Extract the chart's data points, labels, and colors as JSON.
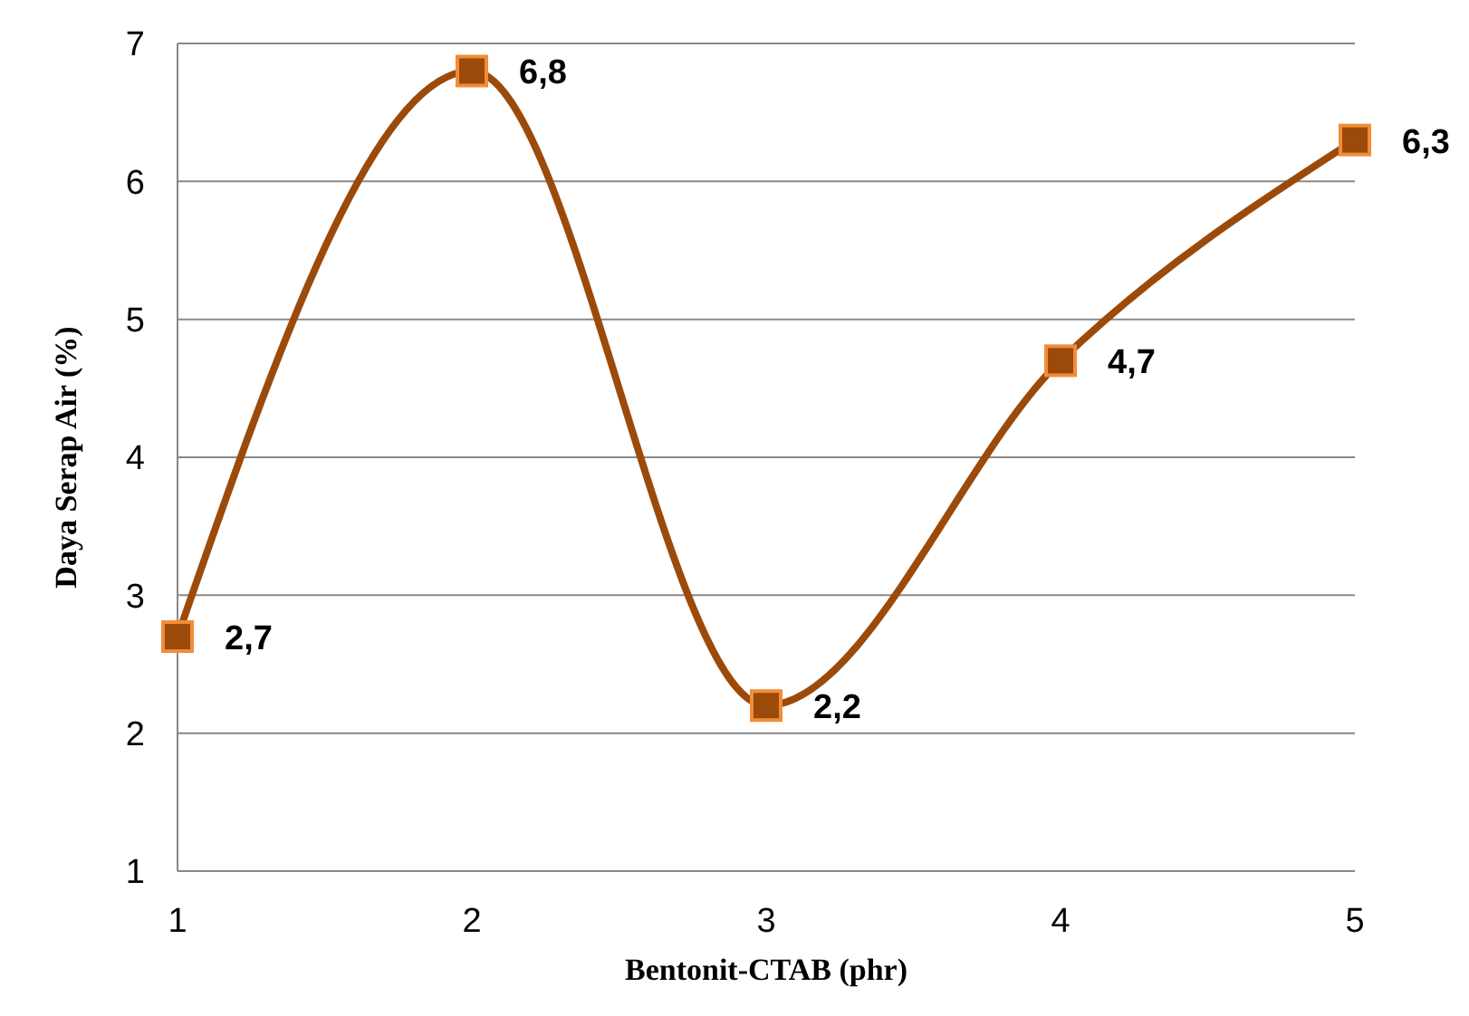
{
  "chart_data": {
    "type": "line",
    "xlabel": "Bentonit-CTAB (phr)",
    "ylabel": "Daya Serap Air (%)",
    "categories": [
      "1",
      "2",
      "3",
      "4",
      "5"
    ],
    "series": [
      {
        "color": "#9c4a0a",
        "values": [
          2.7,
          6.8,
          2.2,
          4.7,
          6.3
        ],
        "value_labels": [
          "2,7",
          "6,8",
          "2,2",
          "4,7",
          "6,3"
        ]
      }
    ],
    "ylim": [
      1,
      7
    ],
    "yticks": [
      1,
      2,
      3,
      4,
      5,
      6,
      7
    ],
    "grid": "y",
    "marker": "square",
    "line_style": "solid"
  }
}
